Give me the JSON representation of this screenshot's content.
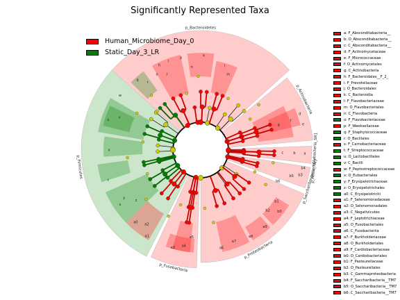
{
  "title": "Significantly Represented Taxa",
  "colors": {
    "human": "#ff0000",
    "static": "#008000",
    "human_light": "#ffcccc",
    "static_light": "#cce6cc",
    "neutral_node": "#cccc00"
  },
  "legend": [
    {
      "label": "Human_Microbiome_Day_0",
      "color": "#ff0000"
    },
    {
      "label": "Static_Day_3_LR",
      "color": "#008000"
    }
  ],
  "phyla": [
    {
      "label": "p_Bacteroidetes"
    },
    {
      "label": "p_Actinobacteria"
    },
    {
      "label": "p_Absconditabacteria_SR1"
    },
    {
      "label": "p_Saccharibacteria_TM7"
    },
    {
      "label": "p_Proteobacteria"
    },
    {
      "label": "p_Fusobacteria"
    },
    {
      "label": "p_Firmicutes"
    }
  ],
  "taxa": [
    {
      "key": "a",
      "label": "a: F_Absconditabacteria__",
      "group": "human"
    },
    {
      "key": "b",
      "label": "b: O_Absconditabacteria__",
      "group": "human"
    },
    {
      "key": "c",
      "label": "c: C_Absconditabacteria__",
      "group": "human"
    },
    {
      "key": "d",
      "label": "d: F_Actinomycetaceae",
      "group": "human"
    },
    {
      "key": "e",
      "label": "e: F_Micrococcaceae",
      "group": "human"
    },
    {
      "key": "f",
      "label": "f: O_Actinomycetales",
      "group": "human"
    },
    {
      "key": "g",
      "label": "g: C_Actinobacteria",
      "group": "human"
    },
    {
      "key": "h",
      "label": "h: F_Bacteroidales__F_2_",
      "group": "human"
    },
    {
      "key": "i",
      "label": "i: F_Prevotellaceae",
      "group": "human"
    },
    {
      "key": "j",
      "label": "j: O_Bacteroidales",
      "group": "human"
    },
    {
      "key": "k",
      "label": "k: C_Bacteroidia",
      "group": "human"
    },
    {
      "key": "l",
      "label": "l: F_Flavobacteriaceae",
      "group": "human"
    },
    {
      "key": "m",
      "label": "m: O_Flavobacteriales",
      "group": "human"
    },
    {
      "key": "n",
      "label": "n: C_Flavobacteria",
      "group": "human"
    },
    {
      "key": "o",
      "label": "o: F_Flavobacteriaceae",
      "group": "static"
    },
    {
      "key": "p",
      "label": "p: F_Weeksellaceae",
      "group": "human"
    },
    {
      "key": "q",
      "label": "q: F_Staphylococcaceae",
      "group": "static"
    },
    {
      "key": "r",
      "label": "r: O_Bacillales",
      "group": "static"
    },
    {
      "key": "s",
      "label": "s: F_Carnobacteriaceae",
      "group": "human"
    },
    {
      "key": "t",
      "label": "t: F_Streptococcaceae",
      "group": "static"
    },
    {
      "key": "u",
      "label": "u: O_Lactobacillales",
      "group": "static"
    },
    {
      "key": "v",
      "label": "v: C_Bacilli",
      "group": "static"
    },
    {
      "key": "w",
      "label": "w: F_Peptostreptococcaceae",
      "group": "human"
    },
    {
      "key": "x",
      "label": "x: O_Eubacteriales",
      "group": "static"
    },
    {
      "key": "y",
      "label": "y: F_Erysipelotrichaceae",
      "group": "static"
    },
    {
      "key": "z",
      "label": "z: O_Erysipelotrichales",
      "group": "static"
    },
    {
      "key": "a0",
      "label": "a0: C_Erysipelotrichi",
      "group": "static"
    },
    {
      "key": "a1",
      "label": "a1: F_Selenomonadaceae",
      "group": "human"
    },
    {
      "key": "a2",
      "label": "a2: O_Selenomonadales",
      "group": "human"
    },
    {
      "key": "a3",
      "label": "a3: C_Negativicutes",
      "group": "human"
    },
    {
      "key": "a4",
      "label": "a4: F_Leptotrichiaceae",
      "group": "human"
    },
    {
      "key": "a5",
      "label": "a5: O_Fusobacteriales",
      "group": "human"
    },
    {
      "key": "a6",
      "label": "a6: C_Fusobacteriia",
      "group": "human"
    },
    {
      "key": "a7",
      "label": "a7: F_Burkholderiaceae",
      "group": "human"
    },
    {
      "key": "a8",
      "label": "a8: O_Burkholderiales",
      "group": "human"
    },
    {
      "key": "a9",
      "label": "a9: F_Cardiobacteriaceae",
      "group": "human"
    },
    {
      "key": "b0",
      "label": "b0: O_Cardiobacteriales",
      "group": "human"
    },
    {
      "key": "b1",
      "label": "b1: F_Pasteurellaceae",
      "group": "human"
    },
    {
      "key": "b2",
      "label": "b2: O_Pasteurellales",
      "group": "human"
    },
    {
      "key": "b3",
      "label": "b3: C_Gammaproteobacteria",
      "group": "human"
    },
    {
      "key": "b4",
      "label": "b4: F_Saccharibacteria__TM7",
      "group": "human"
    },
    {
      "key": "b5",
      "label": "b5: O_Saccharibacteria__TM7",
      "group": "human"
    },
    {
      "key": "b6",
      "label": "b6: C_Saccharibacteria__TM7",
      "group": "human"
    }
  ]
}
